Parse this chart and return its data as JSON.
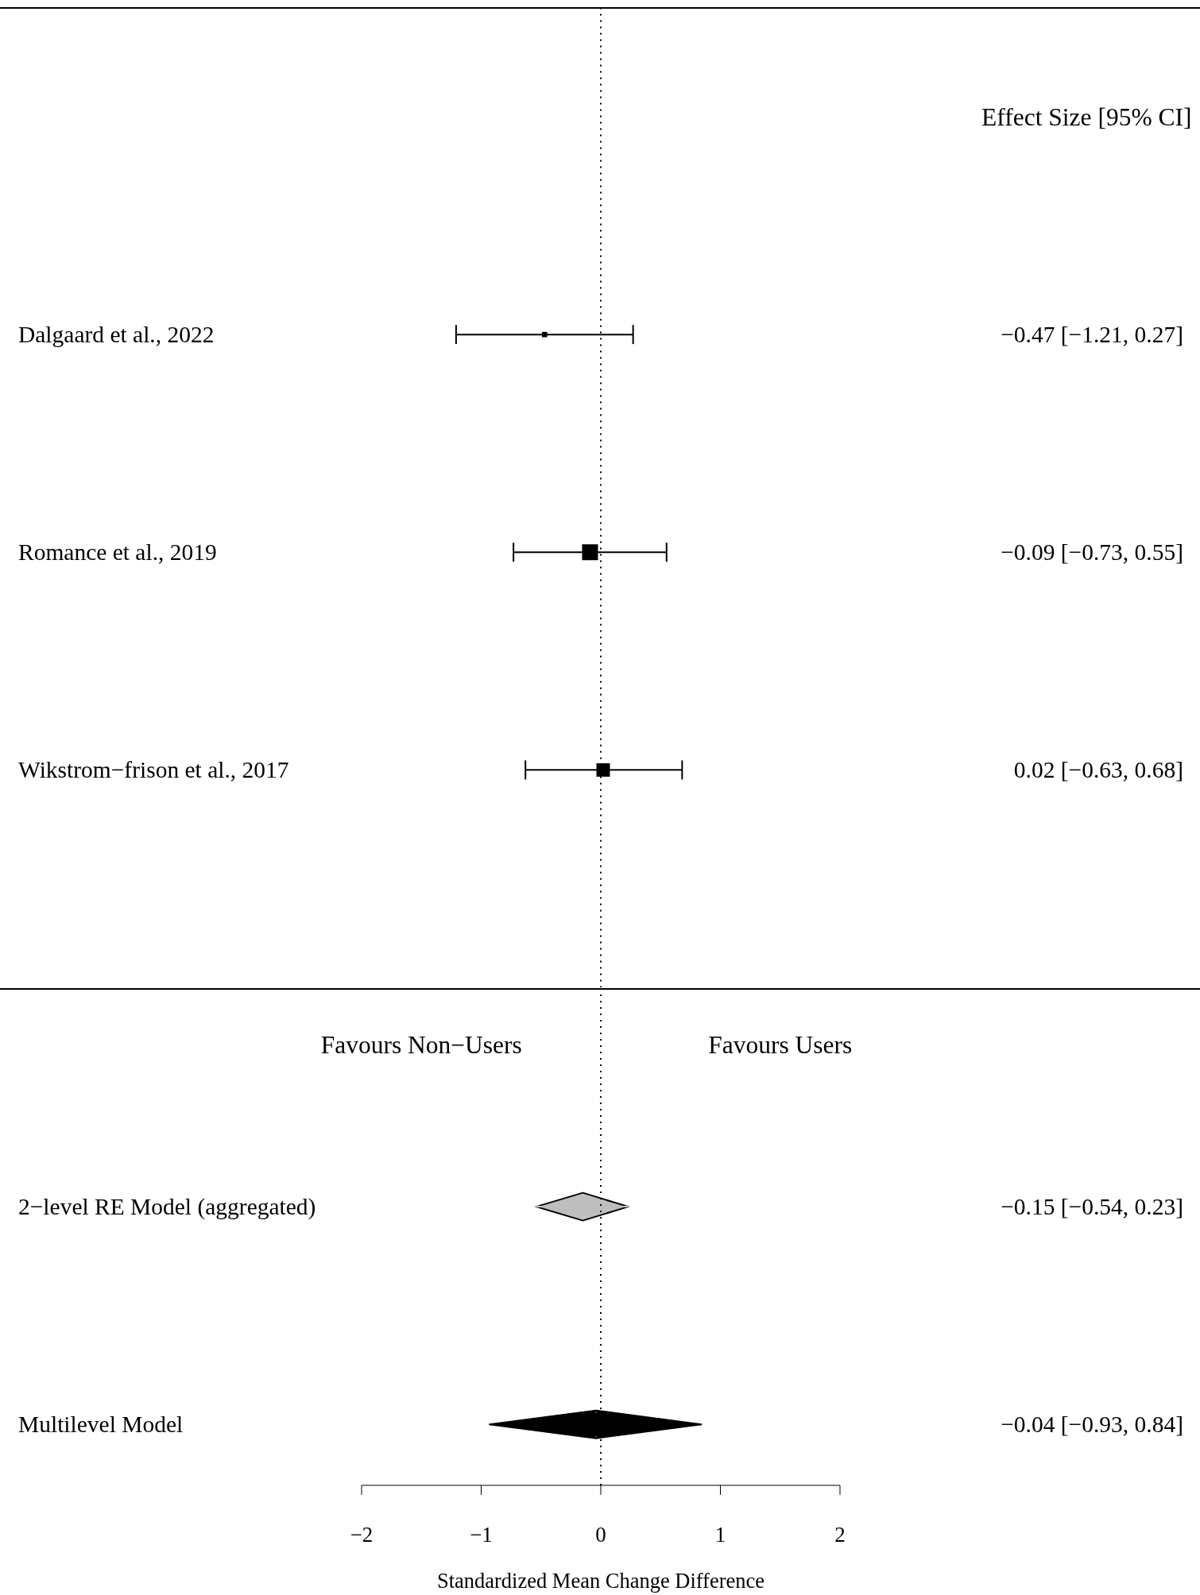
{
  "chart_data": [
    {
      "type": "bubble",
      "orientation": "horizontal",
      "categories": [
        "Dalgaard et al., 2022",
        "Romance et al., 2019",
        "Wikstrom−frison et al., 2017"
      ],
      "values": [
        -0.47,
        -0.09,
        0.02
      ],
      "errors": [
        [
          -1.21,
          0.27
        ],
        [
          -0.73,
          0.55
        ],
        [
          -0.63,
          0.68
        ]
      ],
      "sizes": [
        0.11,
        1,
        0.72
      ],
      "color": "#000000",
      "marker": "square",
      "value_labels": [
        "−0.47 [−1.21, 0.27]",
        "−0.09 [−0.73, 0.55]",
        "0.02 [−0.63, 0.68]"
      ],
      "xlim": [
        -2,
        2
      ],
      "tick_labels": "y",
      "ref_lines": [
        {
          "axis": "x",
          "value": 0,
          "line_style": "dotted",
          "color": "#000000"
        }
      ],
      "annotations": [
        "Effect Size [95% CI]"
      ]
    },
    {
      "type": "scatter",
      "orientation": "horizontal",
      "categories": [
        "2−level RE Model (aggregated)",
        "Multilevel Model"
      ],
      "values": [
        -0.15,
        -0.04
      ],
      "errors": [
        [
          -0.54,
          0.23
        ],
        [
          -0.93,
          0.84
        ]
      ],
      "colors": [
        "#bebebe",
        "#000000"
      ],
      "marker": "diamond",
      "value_labels": [
        "−0.15 [−0.54, 0.23]",
        "−0.04 [−0.93, 0.84]"
      ],
      "xlabel": "Standardized Mean Change Difference",
      "xlim": [
        -2,
        2
      ],
      "xticks": [
        {
          "value": -2,
          "label": "−2"
        },
        {
          "value": -1,
          "label": "−1"
        },
        0,
        1,
        2
      ],
      "ref_lines": [
        {
          "axis": "x",
          "value": 0,
          "line_style": "dotted",
          "color": "#000000"
        }
      ],
      "annotations": [
        "Favours Non−Users",
        "Favours Users"
      ]
    }
  ]
}
